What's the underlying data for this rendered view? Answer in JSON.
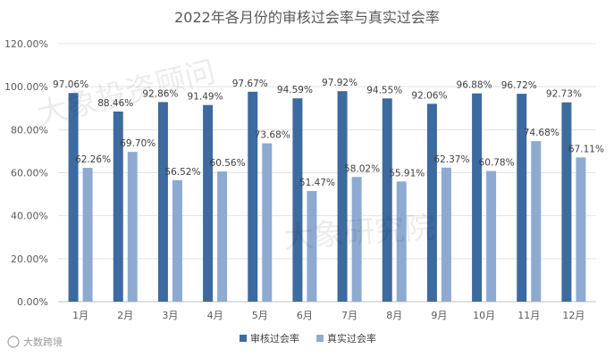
{
  "chart_data": {
    "type": "bar",
    "title": "2022年各月份的审核过会率与真实过会率",
    "categories": [
      "1月",
      "2月",
      "3月",
      "4月",
      "5月",
      "6月",
      "7月",
      "8月",
      "9月",
      "10月",
      "11月",
      "12月"
    ],
    "series": [
      {
        "name": "审核过会率",
        "color": "#3d6a9f",
        "values": [
          97.06,
          88.46,
          92.86,
          91.49,
          97.67,
          94.59,
          97.92,
          94.55,
          92.06,
          96.88,
          96.72,
          92.73
        ],
        "labels": [
          "97.06%",
          "88.46%",
          "92.86%",
          "91.49%",
          "97.67%",
          "94.59%",
          "97.92%",
          "94.55%",
          "92.06%",
          "96.88%",
          "96.72%",
          "92.73%"
        ]
      },
      {
        "name": "真实过会率",
        "color": "#8eaad1",
        "values": [
          62.26,
          69.7,
          56.52,
          60.56,
          73.68,
          51.47,
          58.02,
          55.91,
          62.37,
          60.78,
          74.68,
          67.11
        ],
        "labels": [
          "62.26%",
          "69.70%",
          "56.52%",
          "60.56%",
          "73.68%",
          "51.47%",
          "58.02%",
          "55.91%",
          "62.37%",
          "60.78%",
          "74.68%",
          "67.11%"
        ]
      }
    ],
    "ylim": [
      0,
      120
    ],
    "yticks": [
      0,
      20,
      40,
      60,
      80,
      100,
      120
    ],
    "ytick_labels": [
      "0.00%",
      "20.00%",
      "40.00%",
      "60.00%",
      "80.00%",
      "100.00%",
      "120.00%"
    ],
    "legend": "bottom",
    "grid": true,
    "xlabel": "",
    "ylabel": ""
  },
  "watermarks": [
    "大象投资顾问",
    "大象研究院"
  ],
  "source_credit": "大数跨境"
}
